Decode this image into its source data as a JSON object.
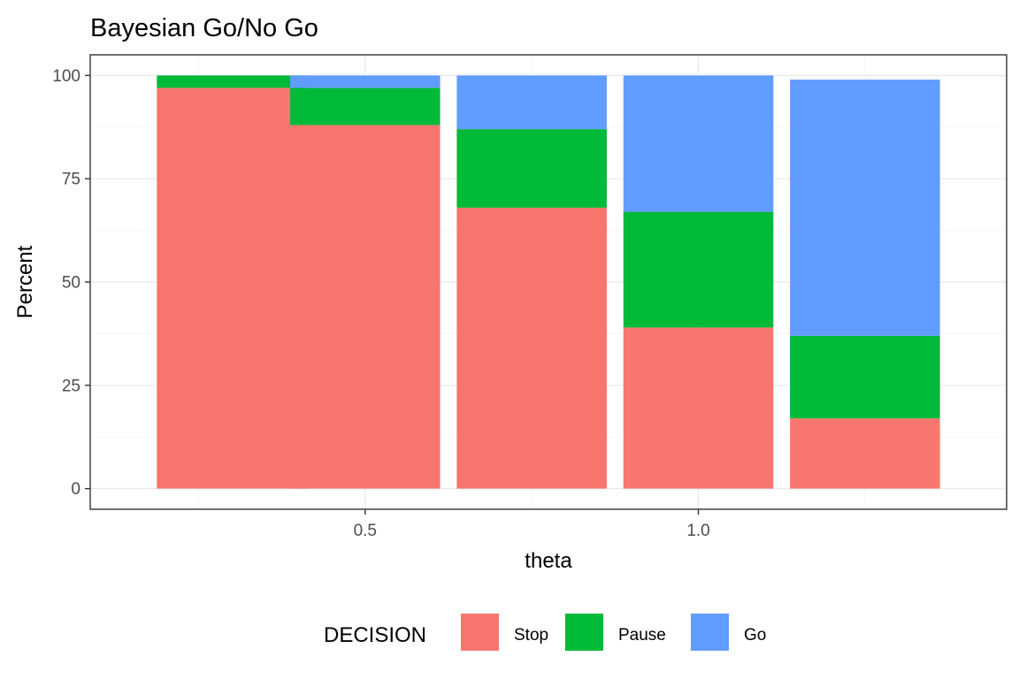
{
  "chart_data": {
    "type": "bar",
    "stacked": true,
    "title": "Bayesian Go/No Go",
    "xlabel": "theta",
    "ylabel": "Percent",
    "x": [
      0.3,
      0.5,
      0.75,
      1.0,
      1.25
    ],
    "x_ticks": [
      0.5,
      1.0
    ],
    "x_tick_labels": [
      "0.5",
      "1.0"
    ],
    "xlim": [
      0.0875,
      1.4625
    ],
    "ylim": [
      -5,
      105
    ],
    "y_ticks": [
      0,
      25,
      50,
      75,
      100
    ],
    "y_tick_labels": [
      "0",
      "25",
      "50",
      "75",
      "100"
    ],
    "grid": true,
    "legend": {
      "title": "DECISION",
      "position": "bottom"
    },
    "series": [
      {
        "name": "Stop",
        "color": "#F8766D",
        "values": [
          97,
          88,
          68,
          39,
          17
        ]
      },
      {
        "name": "Pause",
        "color": "#00BA38",
        "values": [
          3,
          9,
          19,
          28,
          20
        ]
      },
      {
        "name": "Go",
        "color": "#619CFF",
        "values": [
          0,
          3,
          13,
          33,
          62
        ]
      }
    ]
  }
}
